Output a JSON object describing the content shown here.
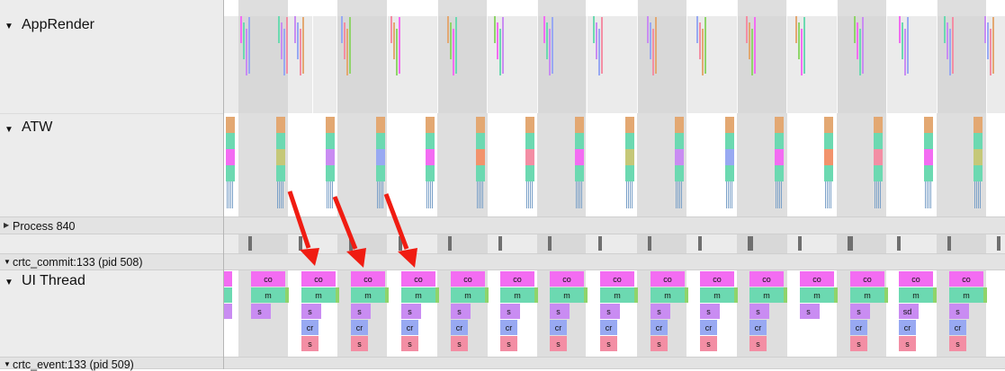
{
  "tracks": {
    "app_render": "AppRender",
    "atw": "ATW",
    "process": "Process 840",
    "crtc_commit": "crtc_commit:133 (pid 508)",
    "ui_thread": "UI Thread",
    "crtc_event": "crtc_event:133 (pid 509)"
  },
  "ui_thread_slices": [
    {
      "co": "co",
      "m": "m",
      "s": "s",
      "cr": "",
      "s2": ""
    },
    {
      "co": "co",
      "m": "m",
      "s": "s",
      "cr": "cr",
      "s2": "s"
    },
    {
      "co": "co",
      "m": "m",
      "s": "s",
      "cr": "cr",
      "s2": "s"
    },
    {
      "co": "co",
      "m": "m",
      "s": "s",
      "cr": "cr",
      "s2": "s"
    },
    {
      "co": "co",
      "m": "m",
      "s": "s",
      "cr": "cr",
      "s2": "s"
    },
    {
      "co": "co",
      "m": "m",
      "s": "s",
      "cr": "cr",
      "s2": "s"
    },
    {
      "co": "co",
      "m": "m",
      "s": "s",
      "cr": "cr",
      "s2": "s"
    },
    {
      "co": "co",
      "m": "m",
      "s": "s",
      "cr": "cr",
      "s2": "s"
    },
    {
      "co": "co",
      "m": "m",
      "s": "s",
      "cr": "cr",
      "s2": "s"
    },
    {
      "co": "co",
      "m": "m",
      "s": "s",
      "cr": "cr",
      "s2": "s"
    },
    {
      "co": "co",
      "m": "m",
      "s": "s",
      "cr": "cr",
      "s2": "s"
    },
    {
      "co": "co",
      "m": "m",
      "s": "s",
      "cr": "",
      "s2": ""
    },
    {
      "co": "co",
      "m": "m",
      "s": "s",
      "cr": "cr",
      "s2": "s"
    },
    {
      "co": "co",
      "m": "m",
      "s": "sd",
      "cr": "cr",
      "s2": "s"
    },
    {
      "co": "co",
      "m": "m",
      "s": "s",
      "cr": "cr",
      "s2": "s"
    }
  ],
  "colors": {
    "co": "#f36cf2",
    "m": "#6cd9b1",
    "s": "#c98cf2",
    "cr": "#98a9f2",
    "s2": "#f38ea4",
    "vsync": "#d0d0d0",
    "arrow": "#f01c12",
    "tick": "#6f6f6f"
  },
  "icons": {
    "expanded": "caret-down-icon",
    "collapsed": "caret-right-icon"
  }
}
